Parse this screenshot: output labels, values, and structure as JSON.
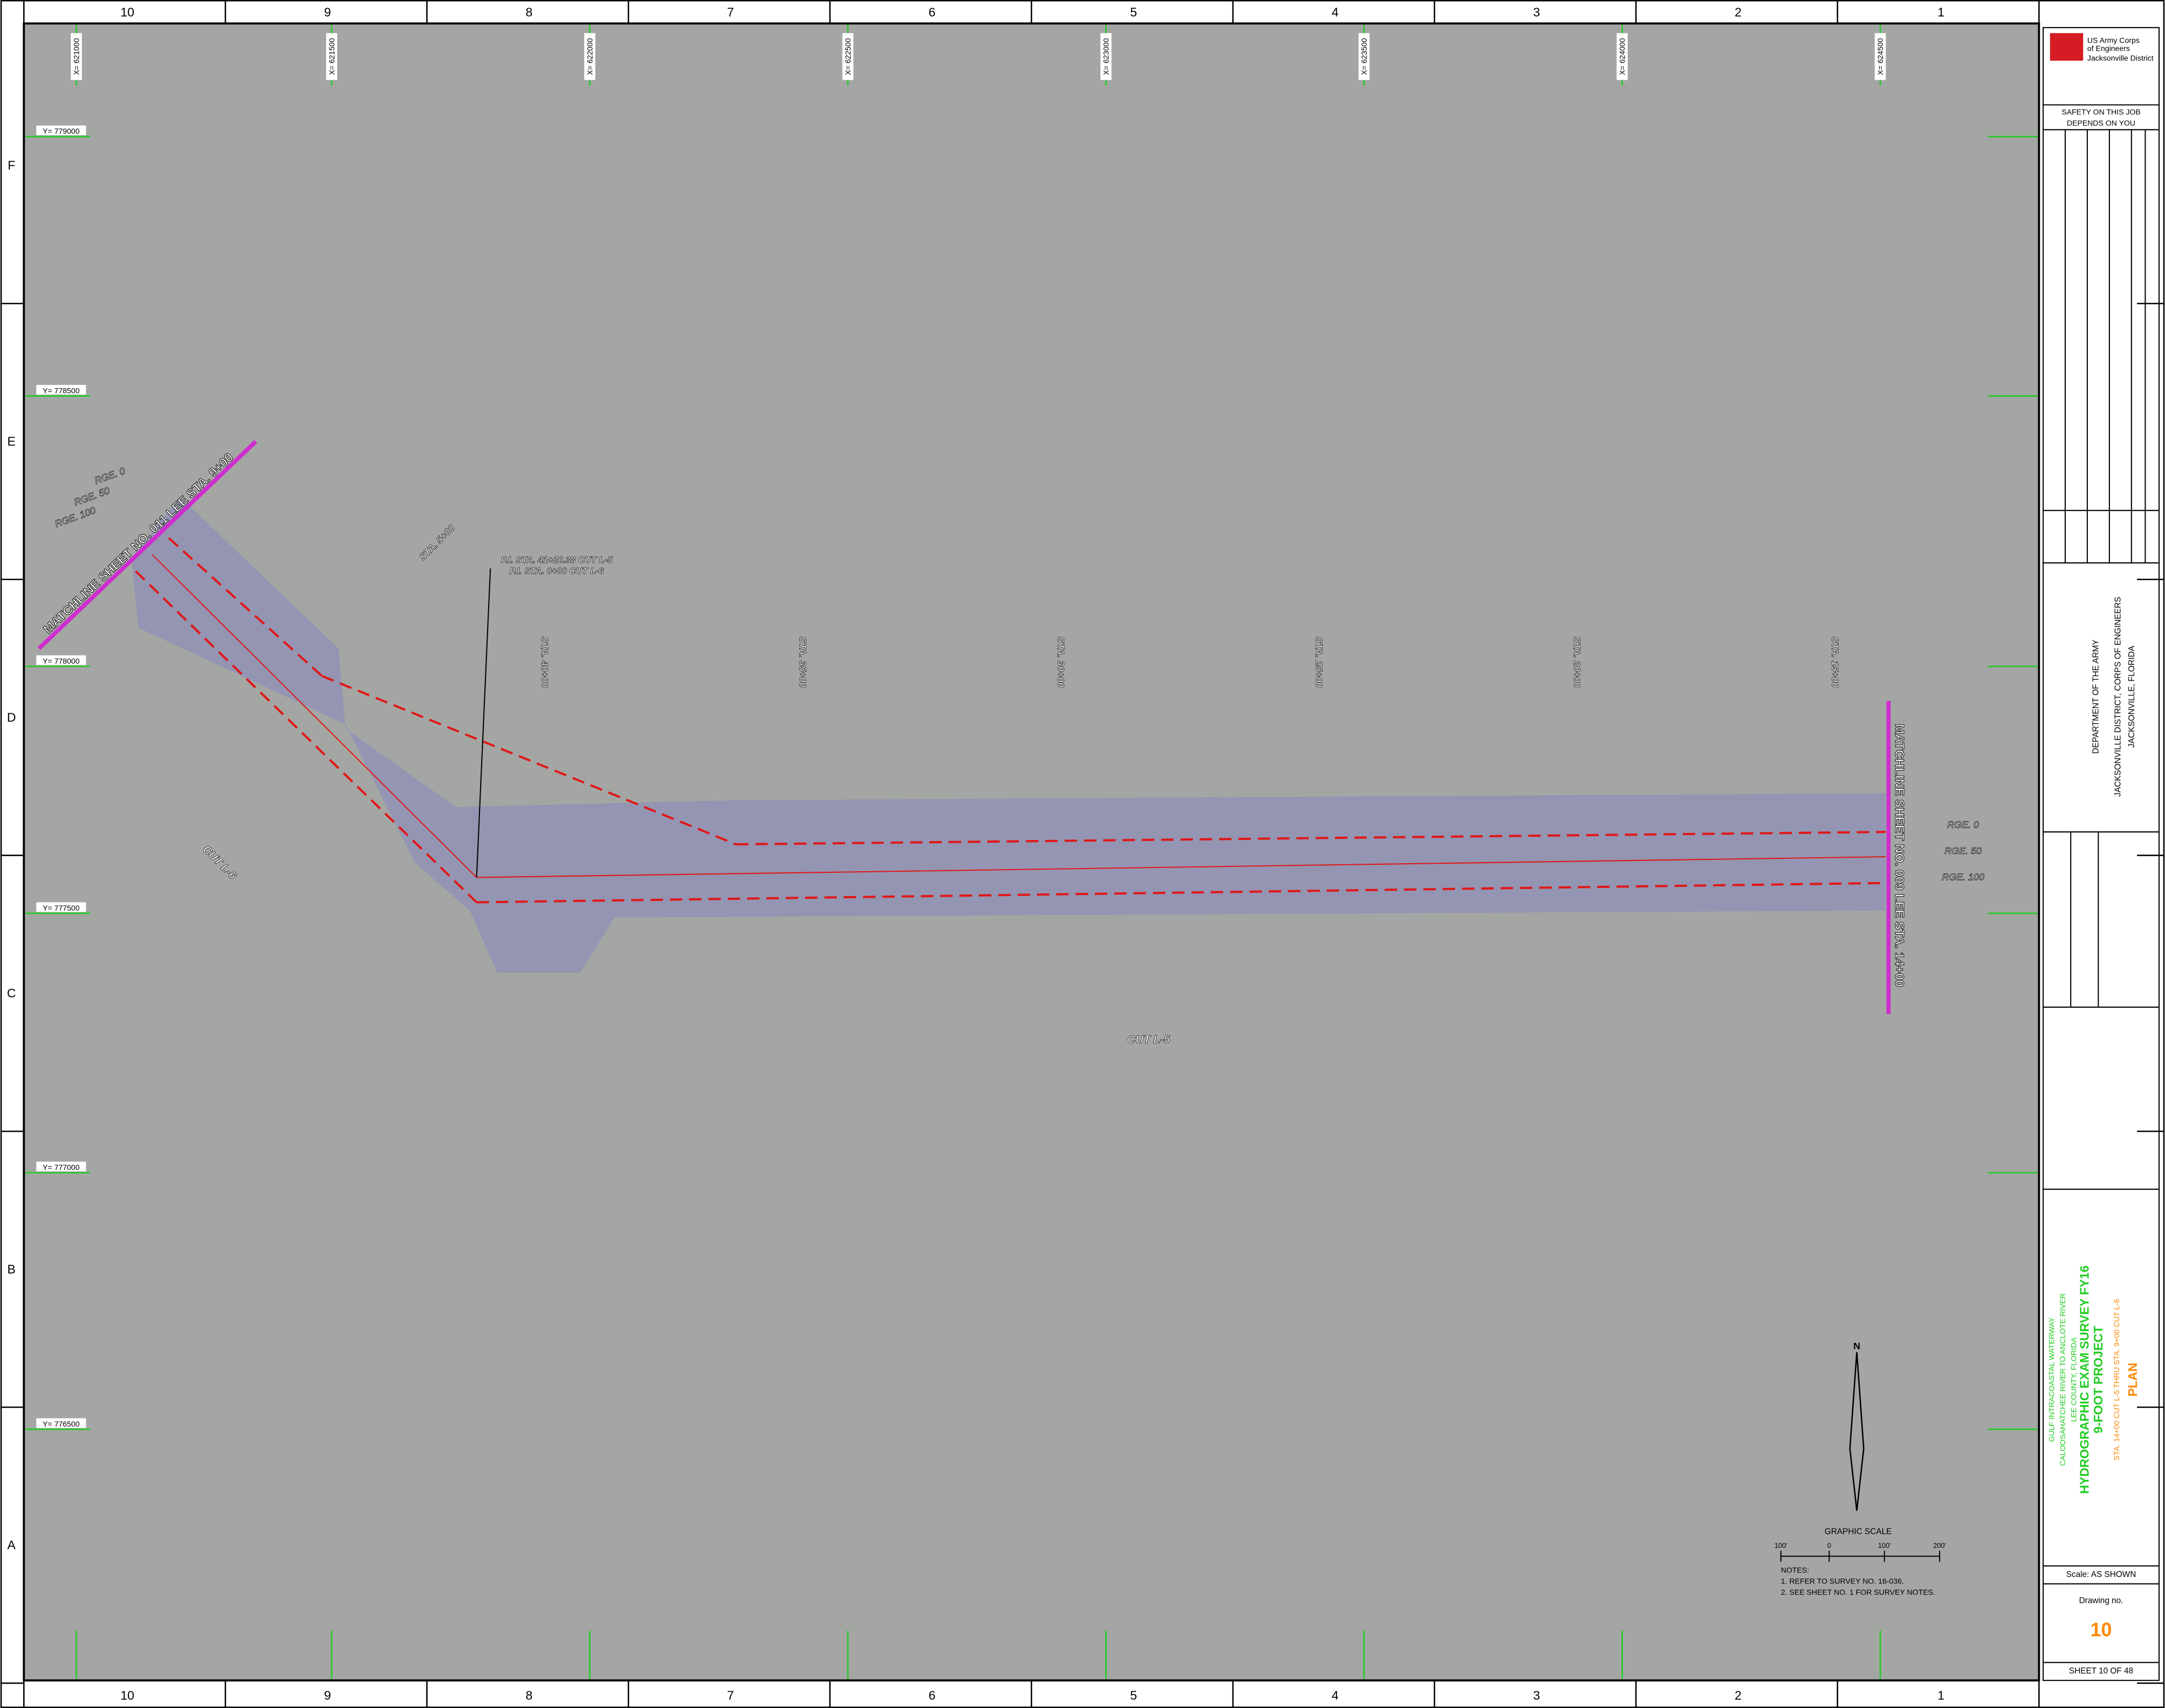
{
  "border": {
    "columns": [
      "10",
      "9",
      "8",
      "7",
      "6",
      "5",
      "4",
      "3",
      "2",
      "1"
    ],
    "rows": [
      "F",
      "E",
      "D",
      "C",
      "B",
      "A"
    ]
  },
  "grid": {
    "x_labels": [
      "X= 621000",
      "X= 621500",
      "X= 622000",
      "X= 622500",
      "X= 623000",
      "X= 623500",
      "X= 624000",
      "X= 624500"
    ],
    "y_labels": [
      "Y= 779000",
      "Y= 778500",
      "Y= 778000",
      "Y= 777500",
      "Y= 777000",
      "Y= 776500"
    ]
  },
  "plan": {
    "matchline_left": "MATCHLINE SHEET NO. 011 LEE STA. 9+00",
    "matchline_right": "MATCHLINE SHEET NO. 009 LEE STA. 14+00",
    "stations": [
      "STA. 40+00",
      "STA. 35+00",
      "STA. 30+00",
      "STA. 25+00",
      "STA. 20+00",
      "STA. 15+00"
    ],
    "station_l6": "STA. 5+00",
    "rge_left": [
      "RGE. 0",
      "RGE. 50",
      "RGE. 100"
    ],
    "rge_right": [
      "RGE. 0",
      "RGE. 50",
      "RGE. 100"
    ],
    "pi": [
      "P.I. STA. 41+20.38 CUT L-5",
      "P.I. STA. 0+00 CUT L-6"
    ],
    "cut_l6": "CUT L-6",
    "cut_l5": "CUT L-5"
  },
  "scale": {
    "title": "GRAPHIC SCALE",
    "labels": [
      "100'",
      "0",
      "100'",
      "200'"
    ],
    "north": "N"
  },
  "notes": [
    "NOTES:",
    "1. REFER TO SURVEY NO. 16-036.",
    "2. SEE SHEET NO. 1 FOR SURVEY NOTES."
  ],
  "title_block": {
    "agency": [
      "US Army Corps",
      "of Engineers",
      "Jacksonville District"
    ],
    "safety": [
      "SAFETY ON THIS JOB",
      "DEPENDS ON YOU"
    ],
    "dept": [
      "DEPARTMENT OF THE ARMY",
      "JACKSONVILLE DISTRICT, CORPS OF ENGINEERS",
      "JACKSONVILLE, FLORIDA"
    ],
    "project": [
      "GULF INTRACOASTAL WATERWAY",
      "CALOOSAHATCHEE RIVER TO ANCLOTE RIVER",
      "LEE COUNTY, FLORIDA"
    ],
    "title": [
      "HYDROGRAPHIC EXAM SURVEY FY16",
      "9-FOOT PROJECT"
    ],
    "subtitle": "STA. 14+00 CUT L-5 THRU STA. 9+00 CUT L-6",
    "sheet_title": "PLAN",
    "scale": "Scale:  AS SHOWN",
    "drawing_label": "Drawing no.",
    "drawing_no": "10",
    "sheet": "SHEET  10  OF  48"
  }
}
